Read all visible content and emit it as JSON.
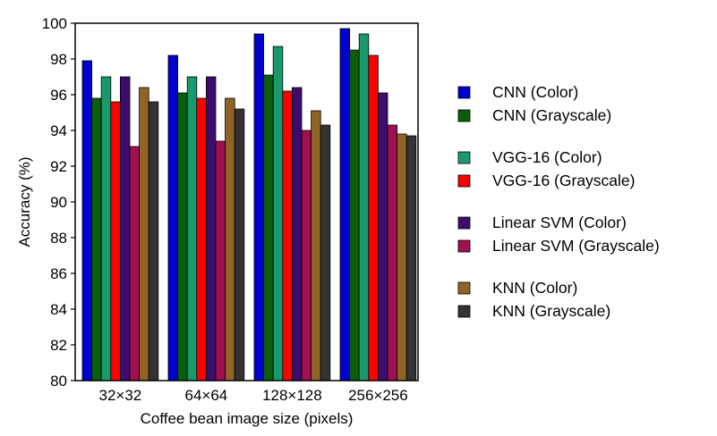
{
  "chart_data": {
    "type": "bar",
    "title": "",
    "xlabel": "Coffee bean image size (pixels)",
    "ylabel": "Accuracy (%)",
    "ylim": [
      80,
      100
    ],
    "yticks": [
      "80",
      "82",
      "84",
      "86",
      "88",
      "90",
      "92",
      "94",
      "96",
      "98",
      "100"
    ],
    "grid": false,
    "legend_position": "right",
    "categories": [
      "32×32",
      "64×64",
      "128×128",
      "256×256"
    ],
    "series": [
      {
        "name": "CNN (Color)",
        "color": "#0000cc",
        "values": [
          97.9,
          98.2,
          99.4,
          99.7
        ]
      },
      {
        "name": "CNN (Grayscale)",
        "color": "#0b5e0b",
        "values": [
          95.8,
          96.1,
          97.1,
          98.5
        ]
      },
      {
        "name": "VGG-16 (Color)",
        "color": "#1a9a6c",
        "values": [
          97.0,
          97.0,
          98.7,
          99.4
        ]
      },
      {
        "name": "VGG-16 (Grayscale)",
        "color": "#ff0000",
        "values": [
          95.6,
          95.8,
          96.2,
          98.2
        ]
      },
      {
        "name": "Linear SVM (Color)",
        "color": "#3d0d6e",
        "values": [
          97.0,
          97.0,
          96.4,
          96.1
        ]
      },
      {
        "name": "Linear SVM (Grayscale)",
        "color": "#a01050",
        "values": [
          93.1,
          93.4,
          94.0,
          94.3
        ]
      },
      {
        "name": "KNN (Color)",
        "color": "#8f6424",
        "values": [
          96.4,
          95.8,
          95.1,
          93.8
        ]
      },
      {
        "name": "KNN (Grayscale)",
        "color": "#333333",
        "values": [
          95.6,
          95.2,
          94.3,
          93.7
        ]
      }
    ]
  }
}
